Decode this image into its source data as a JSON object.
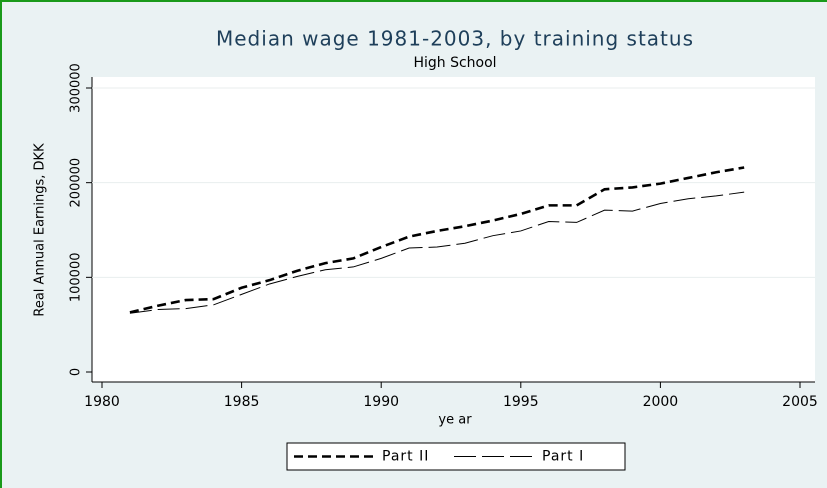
{
  "chart_data": {
    "type": "line",
    "title": "Median wage 1981-2003, by training status",
    "subtitle": "High School",
    "x_label": "ye ar",
    "y_label": "Real Annual Earnings, DKK",
    "x": [
      1981,
      1982,
      1983,
      1984,
      1985,
      1986,
      1987,
      1988,
      1989,
      1990,
      1991,
      1992,
      1993,
      1994,
      1995,
      1996,
      1997,
      1998,
      1999,
      2000,
      2001,
      2002,
      2003
    ],
    "series": [
      {
        "name": "Part II",
        "color": "#000000",
        "dash": "dashed-thick",
        "values": [
          63000,
          70000,
          76000,
          77000,
          89000,
          97000,
          107000,
          115000,
          120000,
          132000,
          143000,
          149000,
          154000,
          160000,
          167000,
          176000,
          176000,
          193000,
          195000,
          199000,
          205000,
          211000,
          216000
        ]
      },
      {
        "name": "Part I",
        "color": "#000000",
        "dash": "long-dash-thin",
        "values": [
          62000,
          66000,
          67000,
          71000,
          82000,
          93000,
          101000,
          108000,
          111000,
          120000,
          131000,
          132000,
          136000,
          144000,
          149000,
          159000,
          158000,
          171000,
          170000,
          178000,
          183000,
          186000,
          190000
        ]
      }
    ],
    "xlim": [
      1980,
      2005
    ],
    "xticks": [
      1980,
      1985,
      1990,
      1995,
      2000,
      2005
    ],
    "ylim": [
      0,
      300000
    ],
    "yticks": [
      0,
      100000,
      200000,
      300000
    ],
    "grid": true,
    "legend": "bottom"
  }
}
